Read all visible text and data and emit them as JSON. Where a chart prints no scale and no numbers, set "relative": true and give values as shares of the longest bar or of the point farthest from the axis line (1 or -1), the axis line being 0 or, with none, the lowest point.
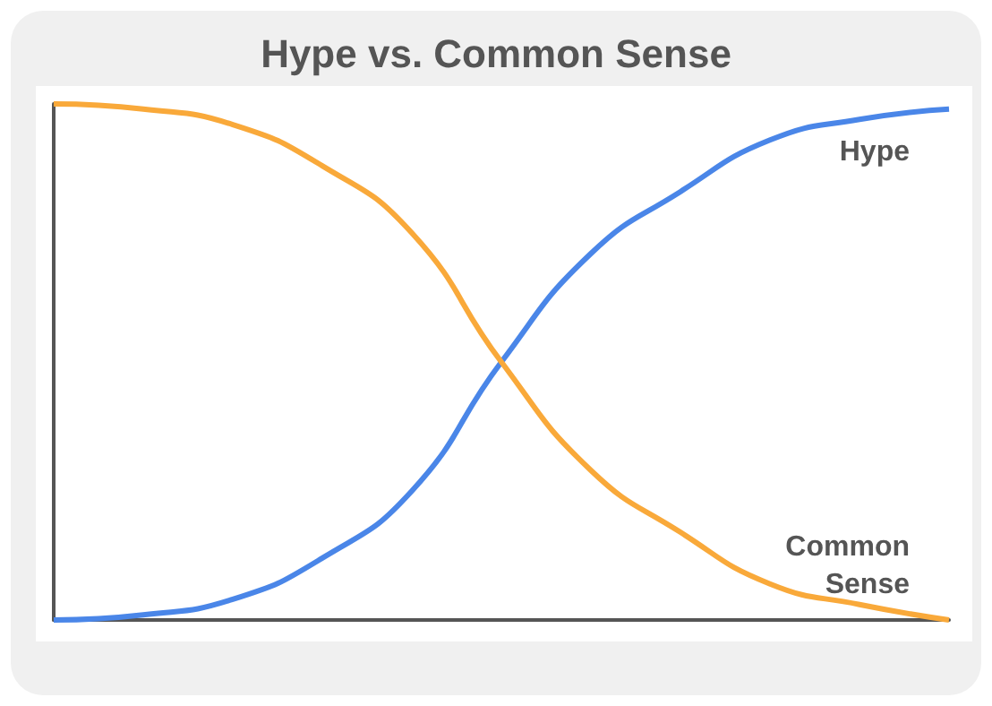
{
  "chart_data": {
    "type": "line",
    "title": "Hype vs. Common Sense",
    "relative": true,
    "categories": [
      null,
      null,
      null,
      null,
      null,
      null,
      null,
      null,
      null,
      null,
      null
    ],
    "series": [
      {
        "name": "Hype",
        "color": "#4a86e8",
        "values": [
          0,
          0.01,
          0.04,
          0.12,
          0.25,
          0.5,
          0.71,
          0.83,
          0.93,
          0.97,
          0.99
        ]
      },
      {
        "name": "Common Sense",
        "color": "#f9a93a",
        "values": [
          1,
          0.99,
          0.96,
          0.88,
          0.75,
          0.5,
          0.29,
          0.17,
          0.07,
          0.03,
          0
        ]
      }
    ],
    "grid": false,
    "legend": false,
    "marker": "none",
    "line_style": "solid"
  }
}
